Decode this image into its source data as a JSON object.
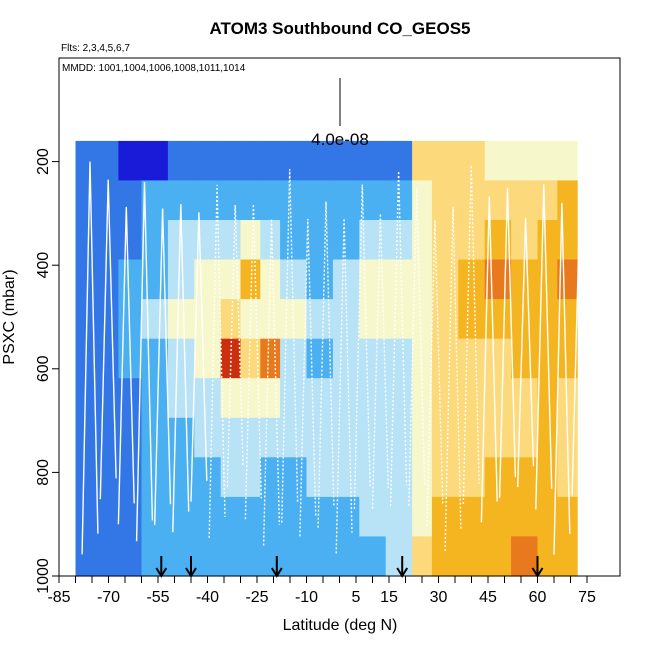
{
  "chart_data": {
    "type": "heatmap",
    "title": "ATOM3 Southbound CO_GEOS5",
    "flights_note": "Flts: 2,3,4,5,6,7",
    "dates_note": "MMDD: 1001,1004,1006,1008,1011,1014",
    "scale_label": "4.0e-08",
    "xlabel": "Latitude (deg N)",
    "ylabel": "PSXC (mbar)",
    "xlim": [
      -85,
      85
    ],
    "ylim": [
      1000,
      0
    ],
    "x_ticks": [
      -85,
      -70,
      -55,
      -40,
      -25,
      -10,
      5,
      15,
      30,
      45,
      60,
      75
    ],
    "x_tick_labels": [
      "-85",
      "-70",
      "-55",
      "-40",
      "-25",
      "-10",
      "5",
      "15",
      "30",
      "45",
      "60",
      "75"
    ],
    "y_ticks": [
      200,
      400,
      600,
      800,
      1000
    ],
    "y_tick_labels": [
      "200",
      "400",
      "600",
      "800",
      "1000"
    ],
    "data_extent": {
      "lat_min": -80,
      "lat_max": 72,
      "p_top": 160,
      "p_bottom": 1000
    },
    "arrow_latitudes": [
      -54,
      -45,
      -19,
      19,
      60
    ],
    "color_scale": [
      "#1a1ad9",
      "#3377e6",
      "#4ab0f2",
      "#b8e2f5",
      "#f7f7cc",
      "#fcd97a",
      "#f5b521",
      "#e8791c",
      "#cc2f0f"
    ],
    "colored_columns": [
      {
        "lat0": -80,
        "lat1": -67,
        "levels": [
          1,
          1,
          1,
          1,
          1,
          1,
          1,
          1,
          1,
          1,
          1
        ]
      },
      {
        "lat0": -67,
        "lat1": -60,
        "levels": [
          0,
          1,
          1,
          2,
          2,
          2,
          1,
          1,
          1,
          1,
          1
        ]
      },
      {
        "lat0": -60,
        "lat1": -52,
        "levels": [
          0,
          2,
          2,
          2,
          3,
          2,
          2,
          2,
          2,
          2,
          2
        ]
      },
      {
        "lat0": -52,
        "lat1": -44,
        "levels": [
          1,
          2,
          3,
          3,
          4,
          3,
          3,
          2,
          2,
          2,
          2
        ]
      },
      {
        "lat0": -44,
        "lat1": -36,
        "levels": [
          1,
          2,
          3,
          4,
          4,
          4,
          3,
          3,
          2,
          2,
          2
        ]
      },
      {
        "lat0": -36,
        "lat1": -30,
        "levels": [
          1,
          2,
          3,
          4,
          5,
          8,
          4,
          3,
          3,
          2,
          2
        ]
      },
      {
        "lat0": -30,
        "lat1": -24,
        "levels": [
          1,
          2,
          4,
          6,
          4,
          5,
          4,
          3,
          3,
          2,
          2
        ]
      },
      {
        "lat0": -24,
        "lat1": -18,
        "levels": [
          1,
          2,
          3,
          4,
          4,
          7,
          4,
          3,
          2,
          2,
          2
        ]
      },
      {
        "lat0": -18,
        "lat1": -10,
        "levels": [
          1,
          2,
          2,
          3,
          4,
          3,
          3,
          3,
          2,
          2,
          2
        ]
      },
      {
        "lat0": -10,
        "lat1": -2,
        "levels": [
          1,
          2,
          2,
          2,
          3,
          2,
          3,
          3,
          3,
          2,
          2
        ]
      },
      {
        "lat0": -2,
        "lat1": 6,
        "levels": [
          1,
          2,
          2,
          3,
          3,
          3,
          3,
          3,
          3,
          2,
          2
        ]
      },
      {
        "lat0": 6,
        "lat1": 14,
        "levels": [
          1,
          2,
          3,
          4,
          4,
          3,
          3,
          3,
          3,
          3,
          2
        ]
      },
      {
        "lat0": 14,
        "lat1": 22,
        "levels": [
          1,
          2,
          3,
          4,
          4,
          3,
          3,
          3,
          3,
          3,
          3
        ]
      },
      {
        "lat0": 22,
        "lat1": 28,
        "levels": [
          5,
          4,
          4,
          4,
          4,
          4,
          4,
          4,
          4,
          4,
          5
        ]
      },
      {
        "lat0": 28,
        "lat1": 36,
        "levels": [
          5,
          5,
          5,
          5,
          5,
          5,
          5,
          5,
          5,
          6,
          6
        ]
      },
      {
        "lat0": 36,
        "lat1": 44,
        "levels": [
          5,
          5,
          5,
          6,
          6,
          5,
          5,
          5,
          5,
          6,
          6
        ]
      },
      {
        "lat0": 44,
        "lat1": 52,
        "levels": [
          4,
          5,
          6,
          7,
          6,
          5,
          5,
          5,
          6,
          6,
          6
        ]
      },
      {
        "lat0": 52,
        "lat1": 60,
        "levels": [
          4,
          5,
          5,
          6,
          6,
          6,
          5,
          5,
          6,
          6,
          7
        ]
      },
      {
        "lat0": 60,
        "lat1": 66,
        "levels": [
          4,
          5,
          6,
          6,
          6,
          6,
          6,
          6,
          6,
          6,
          6
        ]
      },
      {
        "lat0": 66,
        "lat1": 72,
        "levels": [
          4,
          6,
          6,
          7,
          6,
          6,
          5,
          5,
          5,
          6,
          6
        ]
      }
    ]
  }
}
